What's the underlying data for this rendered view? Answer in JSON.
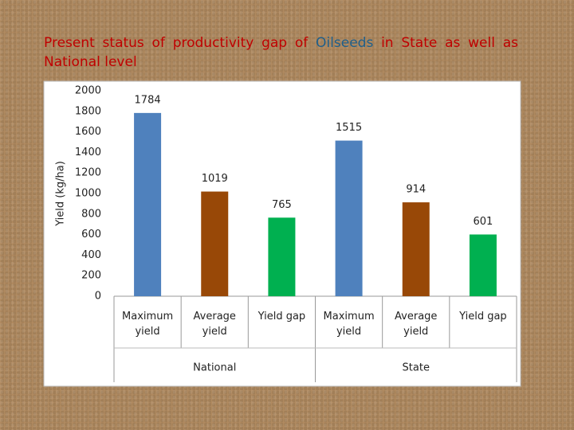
{
  "chart_data": {
    "type": "bar",
    "title": [
      "Present status of productivity gap of",
      "Oilseeds",
      "in State as well as National level"
    ],
    "ylabel": "Yield (kg/ha)",
    "categories": [
      "Maximum yield",
      "Average yield",
      "Yield gap",
      "Maximum yield",
      "Average yield",
      "Yield gap"
    ],
    "groups": [
      "National",
      "State"
    ],
    "values": [
      1784,
      1019,
      765,
      1515,
      914,
      601
    ],
    "colors": [
      "#4f81bd",
      "#984807",
      "#00b050",
      "#4f81bd",
      "#984807",
      "#00b050"
    ],
    "ylim": [
      0,
      2000
    ],
    "yticks": [
      0,
      200,
      400,
      600,
      800,
      1000,
      1200,
      1400,
      1600,
      1800,
      2000
    ],
    "grid": false
  }
}
